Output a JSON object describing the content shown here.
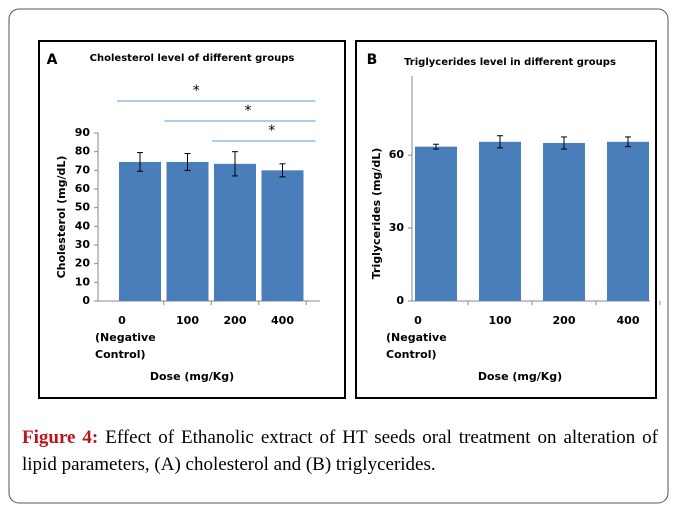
{
  "chart_data": [
    {
      "type": "bar",
      "panel_label": "A",
      "title": "Cholesterol level of different groups",
      "categories": [
        "0",
        "100",
        "200",
        "400"
      ],
      "category_note_lines": [
        "(Negative",
        "Control)"
      ],
      "values": [
        74.5,
        74.5,
        73.5,
        70
      ],
      "errors": [
        5,
        4.5,
        6.5,
        3.5
      ],
      "color": "#4a7ebb",
      "ylim": [
        0,
        90
      ],
      "yticks": [
        0,
        10,
        20,
        30,
        40,
        50,
        60,
        70,
        80,
        90
      ],
      "ylabel": "Cholesterol (mg/dL)",
      "xlabel": "Dose (mg/Kg)",
      "significance": [
        {
          "from": "0",
          "to": "400",
          "label": "*"
        },
        {
          "from": "100",
          "to": "400",
          "label": "*"
        },
        {
          "from": "200",
          "to": "400",
          "label": "*"
        }
      ]
    },
    {
      "type": "bar",
      "panel_label": "B",
      "title": "Triglycerides level in different groups",
      "categories": [
        "0",
        "100",
        "200",
        "400"
      ],
      "category_note_lines": [
        "(Negative",
        "Control)"
      ],
      "values": [
        63.5,
        65.5,
        65,
        65.5
      ],
      "errors": [
        1,
        2.5,
        2.5,
        2
      ],
      "color": "#4a7ebb",
      "ylim": [
        0,
        72
      ],
      "yticks": [
        0,
        30,
        60
      ],
      "ylabel": "Triglycerides (mg/dL)",
      "xlabel": "Dose (mg/Kg)"
    }
  ],
  "caption": {
    "label": "Figure 4:",
    "text": "Effect of Ethanolic extract of HT seeds oral treatment on alteration of lipid parameters, (A) cholesterol and (B) triglycerides."
  }
}
